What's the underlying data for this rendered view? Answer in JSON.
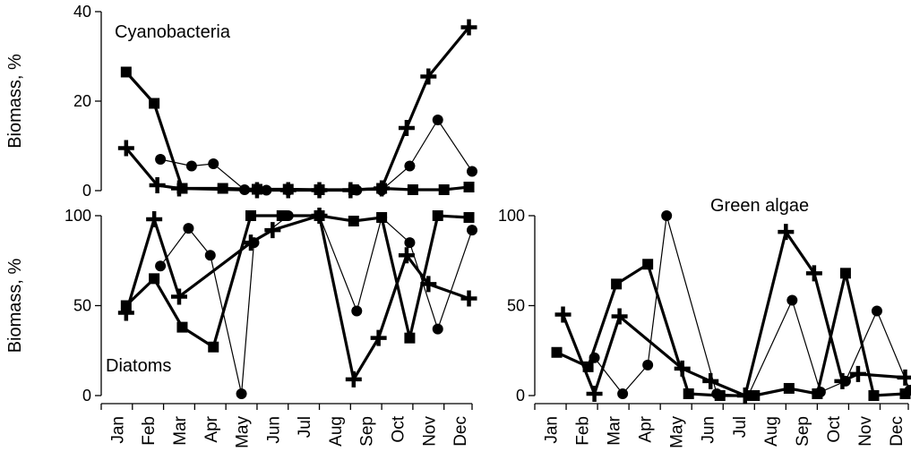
{
  "months": [
    "Jan",
    "Feb",
    "Mar",
    "Apr",
    "May",
    "Jun",
    "Jul",
    "Aug",
    "Sep",
    "Oct",
    "Nov",
    "Dec"
  ],
  "ylabel": "Biomass, %",
  "chart_data": [
    {
      "type": "line",
      "title": "Cyanobacteria",
      "ylabel": "Biomass, %",
      "ylim": [
        0,
        40
      ],
      "yticks": [
        0,
        20,
        40
      ],
      "xlim": [
        1,
        12.9
      ],
      "series": [
        {
          "marker": "square",
          "width": "thick",
          "x": [
            1.8,
            2.7,
            3.6,
            4.9,
            6.0,
            7.0,
            8.0,
            9.1,
            10.0,
            11.0,
            12.0,
            12.8
          ],
          "y": [
            26.5,
            19.5,
            0.5,
            0.5,
            0.3,
            0.3,
            0.2,
            0.2,
            0.5,
            0.2,
            0.2,
            0.8
          ]
        },
        {
          "marker": "plus",
          "width": "thick",
          "x": [
            1.8,
            2.8,
            3.5,
            6.0,
            7.0,
            8.0,
            9.0,
            10.0,
            10.8,
            11.5,
            12.8
          ],
          "y": [
            9.5,
            1.2,
            0.5,
            0.1,
            0.1,
            0.1,
            0.1,
            0.5,
            14.0,
            25.5,
            36.5
          ]
        },
        {
          "marker": "circle",
          "width": "thin",
          "x": [
            2.9,
            3.9,
            4.6,
            5.6,
            6.3,
            7.0,
            8.0,
            9.2,
            10.0,
            10.9,
            11.8,
            12.9
          ],
          "y": [
            7.0,
            5.5,
            6.0,
            0.2,
            0.1,
            0.1,
            0.1,
            0.1,
            0.1,
            5.5,
            15.8,
            4.3
          ]
        }
      ]
    },
    {
      "type": "line",
      "title": "Diatoms",
      "ylabel": "Biomass, %",
      "ylim": [
        0,
        100
      ],
      "yticks": [
        0,
        50,
        100
      ],
      "xlim": [
        1,
        12.9
      ],
      "series": [
        {
          "marker": "square",
          "width": "thick",
          "x": [
            1.8,
            2.7,
            3.6,
            4.6,
            5.8,
            6.8,
            8.0,
            9.1,
            10.0,
            10.9,
            11.8,
            12.8
          ],
          "y": [
            50,
            65,
            38,
            27,
            100,
            100,
            100,
            97,
            99,
            32,
            100,
            99
          ]
        },
        {
          "marker": "plus",
          "width": "thick",
          "x": [
            1.8,
            2.7,
            3.5,
            5.8,
            6.5,
            8.0,
            9.1,
            9.9,
            10.8,
            11.5,
            12.8
          ],
          "y": [
            46,
            98,
            55,
            85,
            92,
            100,
            9,
            32,
            78,
            62,
            54
          ]
        },
        {
          "marker": "circle",
          "width": "thin",
          "x": [
            2.9,
            3.8,
            4.5,
            5.5,
            5.9,
            7.0,
            8.0,
            9.2,
            10.0,
            10.9,
            11.8,
            12.9
          ],
          "y": [
            72,
            93,
            78,
            1,
            85,
            100,
            100,
            47,
            99,
            85,
            37,
            92
          ]
        }
      ]
    },
    {
      "type": "line",
      "title": "Green algae",
      "ylim": [
        0,
        100
      ],
      "yticks": [
        0,
        50,
        100
      ],
      "xlim": [
        1,
        12.9
      ],
      "series": [
        {
          "marker": "square",
          "width": "thick",
          "x": [
            1.7,
            2.7,
            3.6,
            4.6,
            5.9,
            6.9,
            8.0,
            9.1,
            10.0,
            10.9,
            11.8,
            12.8
          ],
          "y": [
            24,
            16,
            62,
            73,
            1,
            0,
            0,
            4,
            1,
            68,
            0,
            1
          ]
        },
        {
          "marker": "plus",
          "width": "thick",
          "x": [
            1.9,
            2.9,
            3.7,
            5.7,
            6.6,
            7.7,
            9.0,
            9.9,
            10.8,
            11.3,
            12.8
          ],
          "y": [
            45,
            1,
            44,
            15,
            8,
            0,
            91,
            68,
            8,
            12,
            10
          ]
        },
        {
          "marker": "circle",
          "width": "thin",
          "x": [
            2.9,
            3.8,
            4.6,
            5.2,
            6.8,
            7.8,
            9.2,
            10.1,
            10.9,
            11.9,
            12.95
          ],
          "y": [
            21,
            1,
            17,
            100,
            1,
            0,
            53,
            2,
            8,
            47,
            3
          ]
        }
      ]
    }
  ]
}
